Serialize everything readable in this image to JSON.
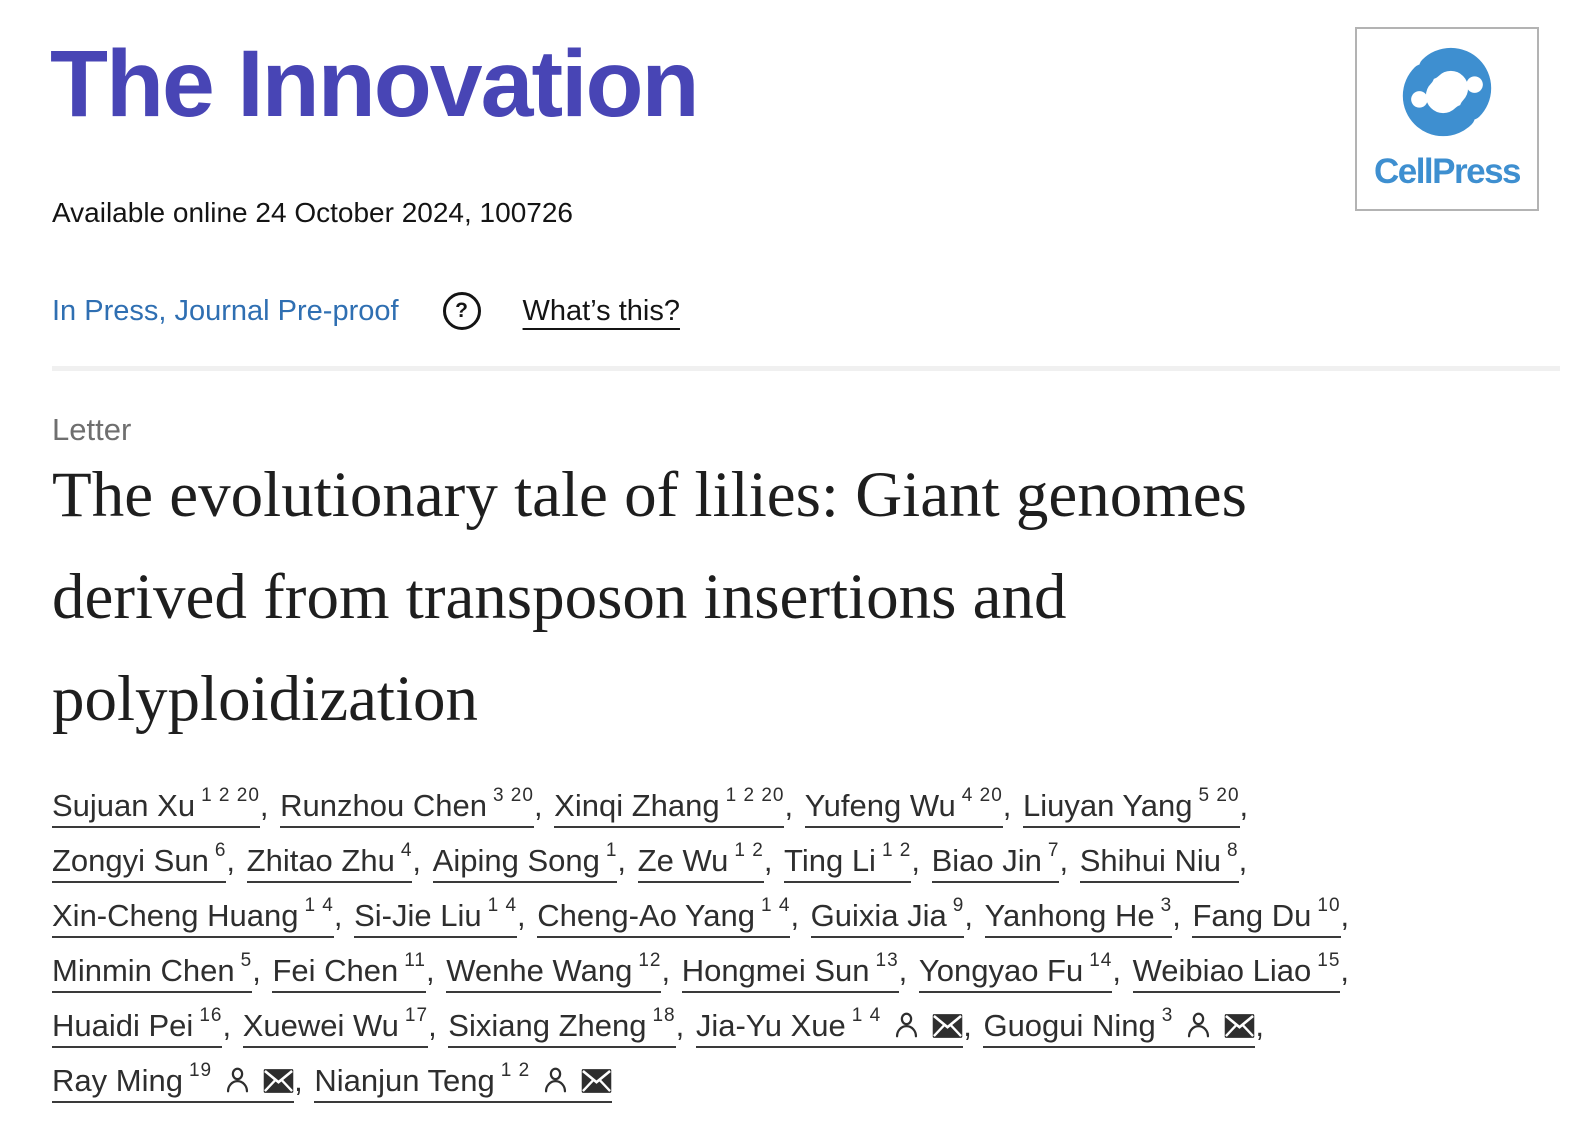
{
  "header": {
    "journal_logo": "The Innovation",
    "publisher_logo": "CellPress",
    "availability": "Available online 24 October 2024, 100726",
    "status_link": "In Press, Journal Pre-proof",
    "whats_this": "What’s this?"
  },
  "article": {
    "type_label": "Letter",
    "title": "The evolutionary tale of lilies: Giant genomes derived from transposon insertions and polyploidization"
  },
  "authors": {
    "list": [
      {
        "name": "Sujuan Xu",
        "sup": "1 2 20"
      },
      {
        "name": "Runzhou Chen",
        "sup": "3 20"
      },
      {
        "name": "Xinqi Zhang",
        "sup": "1 2 20"
      },
      {
        "name": "Yufeng Wu",
        "sup": "4 20"
      },
      {
        "name": "Liuyan Yang",
        "sup": "5 20"
      },
      {
        "name": "Zongyi Sun",
        "sup": "6"
      },
      {
        "name": "Zhitao Zhu",
        "sup": "4"
      },
      {
        "name": "Aiping Song",
        "sup": "1"
      },
      {
        "name": "Ze Wu",
        "sup": "1 2"
      },
      {
        "name": "Ting Li",
        "sup": "1 2"
      },
      {
        "name": "Biao Jin",
        "sup": "7"
      },
      {
        "name": "Shihui Niu",
        "sup": "8"
      },
      {
        "name": "Xin-Cheng Huang",
        "sup": "1 4"
      },
      {
        "name": "Si-Jie Liu",
        "sup": "1 4"
      },
      {
        "name": "Cheng-Ao Yang",
        "sup": "1 4"
      },
      {
        "name": "Guixia Jia",
        "sup": "9"
      },
      {
        "name": "Yanhong He",
        "sup": "3"
      },
      {
        "name": "Fang Du",
        "sup": "10"
      },
      {
        "name": "Minmin Chen",
        "sup": "5"
      },
      {
        "name": "Fei Chen",
        "sup": "11"
      },
      {
        "name": "Wenhe Wang",
        "sup": "12"
      },
      {
        "name": "Hongmei Sun",
        "sup": "13"
      },
      {
        "name": "Yongyao Fu",
        "sup": "14"
      },
      {
        "name": "Weibiao Liao",
        "sup": "15"
      },
      {
        "name": "Huaidi Pei",
        "sup": "16"
      },
      {
        "name": "Xuewei Wu",
        "sup": "17"
      },
      {
        "name": "Sixiang Zheng",
        "sup": "18"
      },
      {
        "name": "Jia-Yu Xue",
        "sup": "1 4",
        "profile": true,
        "email": true
      },
      {
        "name": "Guogui Ning",
        "sup": "3",
        "profile": true,
        "email": true
      },
      {
        "name": "Ray Ming",
        "sup": "19",
        "profile": true,
        "email": true
      },
      {
        "name": "Nianjun Teng",
        "sup": "1 2",
        "profile": true,
        "email": true
      }
    ]
  },
  "icons": {
    "question_circle": "?",
    "person": "person-outline",
    "envelope": "envelope-filled",
    "cellpress_mark": "interlocked-s"
  },
  "colors": {
    "journal_logo": "#4845B5",
    "link": "#2F6FB2",
    "cellpress": "#3E8FD0",
    "muted": "#6F6F6F",
    "divider": "#F0F0F0",
    "author_text": "#2E2E2E"
  }
}
